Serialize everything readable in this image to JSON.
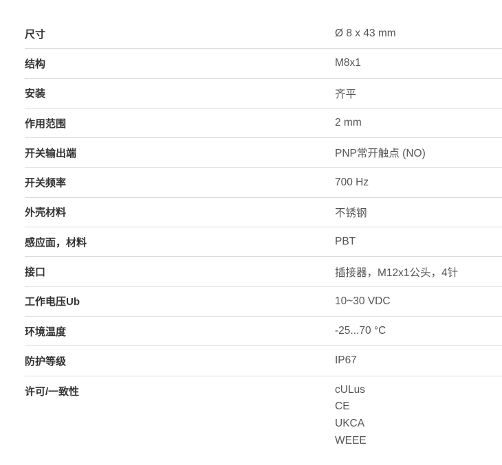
{
  "specs": [
    {
      "label": "尺寸",
      "value": "Ø 8 x 43 mm"
    },
    {
      "label": "结构",
      "value": "M8x1"
    },
    {
      "label": "安装",
      "value": "齐平"
    },
    {
      "label": "作用范围",
      "value": "2 mm"
    },
    {
      "label": "开关输出端",
      "value": "PNP常开触点 (NO)"
    },
    {
      "label": "开关频率",
      "value": "700 Hz"
    },
    {
      "label": "外壳材料",
      "value": "不锈钢"
    },
    {
      "label": "感应面，材料",
      "value": "PBT"
    },
    {
      "label": "接口",
      "value": "插接器，M12x1公头，4针"
    },
    {
      "label": "工作电压Ub",
      "value": "10~30 VDC"
    },
    {
      "label": "环境温度",
      "value": "-25...70 °C"
    },
    {
      "label": "防护等级",
      "value": "IP67"
    }
  ],
  "approvals": {
    "label": "许可/一致性",
    "values": [
      "cULus",
      "CE",
      "UKCA",
      "WEEE"
    ]
  }
}
